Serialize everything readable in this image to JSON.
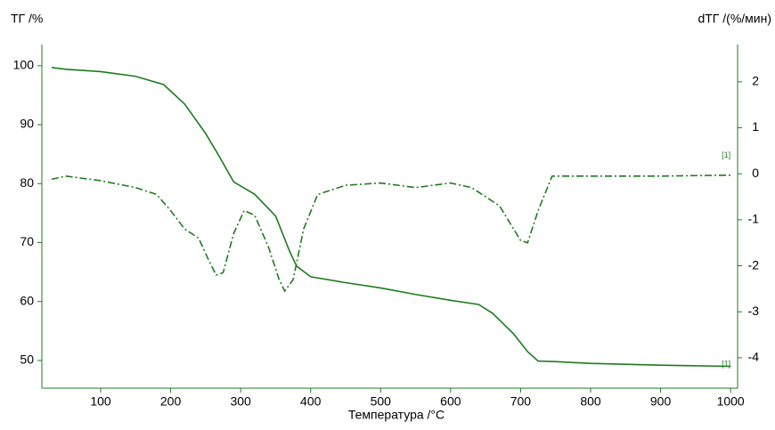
{
  "chart_data": {
    "type": "line",
    "y_label": "ТГ /%",
    "y2_label": "dТГ /(%/мин)",
    "x_label": "Температура /°С",
    "xlim": [
      16,
      1010
    ],
    "xticks": [
      100,
      200,
      300,
      400,
      500,
      600,
      700,
      800,
      900,
      1000
    ],
    "ylim": [
      45.3,
      103.6
    ],
    "yticks": [
      50,
      60,
      70,
      80,
      90,
      100
    ],
    "y2lim": [
      -4.66,
      2.81
    ],
    "y2ticks": [
      -4,
      -3,
      -2,
      -1,
      0,
      1,
      2
    ],
    "axis_color": "#1f7a1f",
    "series": [
      {
        "name": "ТГ",
        "label": "[1]",
        "color": "#1f7a1f",
        "dash": "solid",
        "x": [
          30,
          50,
          100,
          150,
          190,
          220,
          250,
          270,
          290,
          320,
          350,
          370,
          380,
          400,
          450,
          500,
          550,
          600,
          640,
          660,
          690,
          710,
          725,
          750,
          800,
          900,
          1000
        ],
        "values": [
          99.7,
          99.4,
          99.0,
          98.2,
          96.8,
          93.5,
          88.5,
          84.5,
          80.3,
          78.2,
          74.5,
          68.5,
          66.0,
          64.2,
          63.2,
          62.3,
          61.2,
          60.2,
          59.5,
          58.0,
          54.5,
          51.5,
          49.9,
          49.8,
          49.5,
          49.2,
          49.0
        ]
      },
      {
        "name": "dТГ",
        "label": "[1]",
        "color": "#1f7a1f",
        "dash": "dashdot",
        "axis": "y2",
        "x": [
          30,
          50,
          100,
          150,
          180,
          200,
          220,
          240,
          255,
          265,
          275,
          290,
          305,
          320,
          340,
          355,
          363,
          375,
          390,
          410,
          450,
          500,
          550,
          600,
          630,
          670,
          700,
          710,
          725,
          745,
          800,
          900,
          1000
        ],
        "values": [
          -0.12,
          -0.05,
          -0.15,
          -0.3,
          -0.45,
          -0.8,
          -1.2,
          -1.4,
          -1.9,
          -2.2,
          -2.15,
          -1.3,
          -0.8,
          -0.9,
          -1.6,
          -2.3,
          -2.55,
          -2.3,
          -1.2,
          -0.45,
          -0.25,
          -0.2,
          -0.3,
          -0.2,
          -0.3,
          -0.7,
          -1.45,
          -1.5,
          -0.8,
          -0.05,
          -0.05,
          -0.05,
          -0.03
        ]
      }
    ]
  }
}
